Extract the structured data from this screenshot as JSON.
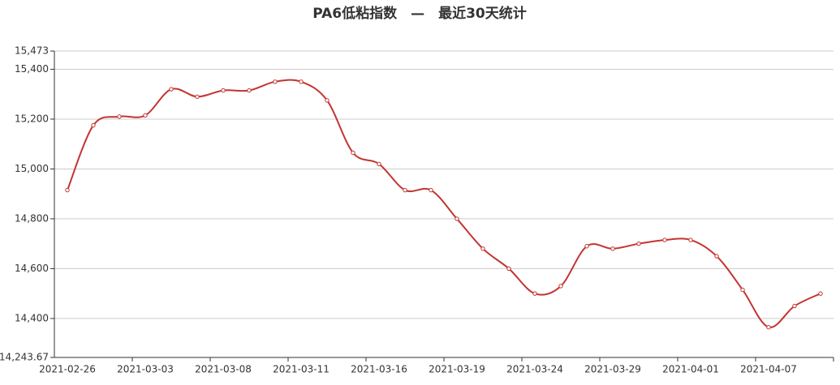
{
  "chart_data": {
    "type": "line",
    "title": "PA6低粘指数　—　最近30天统计",
    "categories": [
      "2021-02-26",
      null,
      null,
      "2021-03-03",
      null,
      null,
      "2021-03-08",
      null,
      null,
      "2021-03-11",
      null,
      null,
      "2021-03-16",
      null,
      null,
      "2021-03-19",
      null,
      null,
      "2021-03-24",
      null,
      null,
      "2021-03-29",
      null,
      null,
      "2021-04-01",
      null,
      null,
      "2021-04-07",
      null,
      null
    ],
    "values": [
      14915,
      15175,
      15210,
      15215,
      15320,
      15290,
      15315,
      15315,
      15350,
      15350,
      15275,
      15065,
      15020,
      14915,
      14915,
      14800,
      14680,
      14600,
      14500,
      14530,
      14690,
      14680,
      14700,
      14715,
      14715,
      14650,
      14515,
      14365,
      14450,
      14500
    ],
    "color": "#c23531",
    "ylim": [
      14243.67,
      15473
    ],
    "yticks": [
      {
        "value": 14243.67,
        "label": "14,243.67"
      },
      {
        "value": 14400,
        "label": "14,400"
      },
      {
        "value": 14600,
        "label": "14,600"
      },
      {
        "value": 14800,
        "label": "14,800"
      },
      {
        "value": 15000,
        "label": "15,000"
      },
      {
        "value": 15200,
        "label": "15,200"
      },
      {
        "value": 15400,
        "label": "15,400"
      },
      {
        "value": 15473,
        "label": "15,473"
      }
    ],
    "grid": true
  }
}
